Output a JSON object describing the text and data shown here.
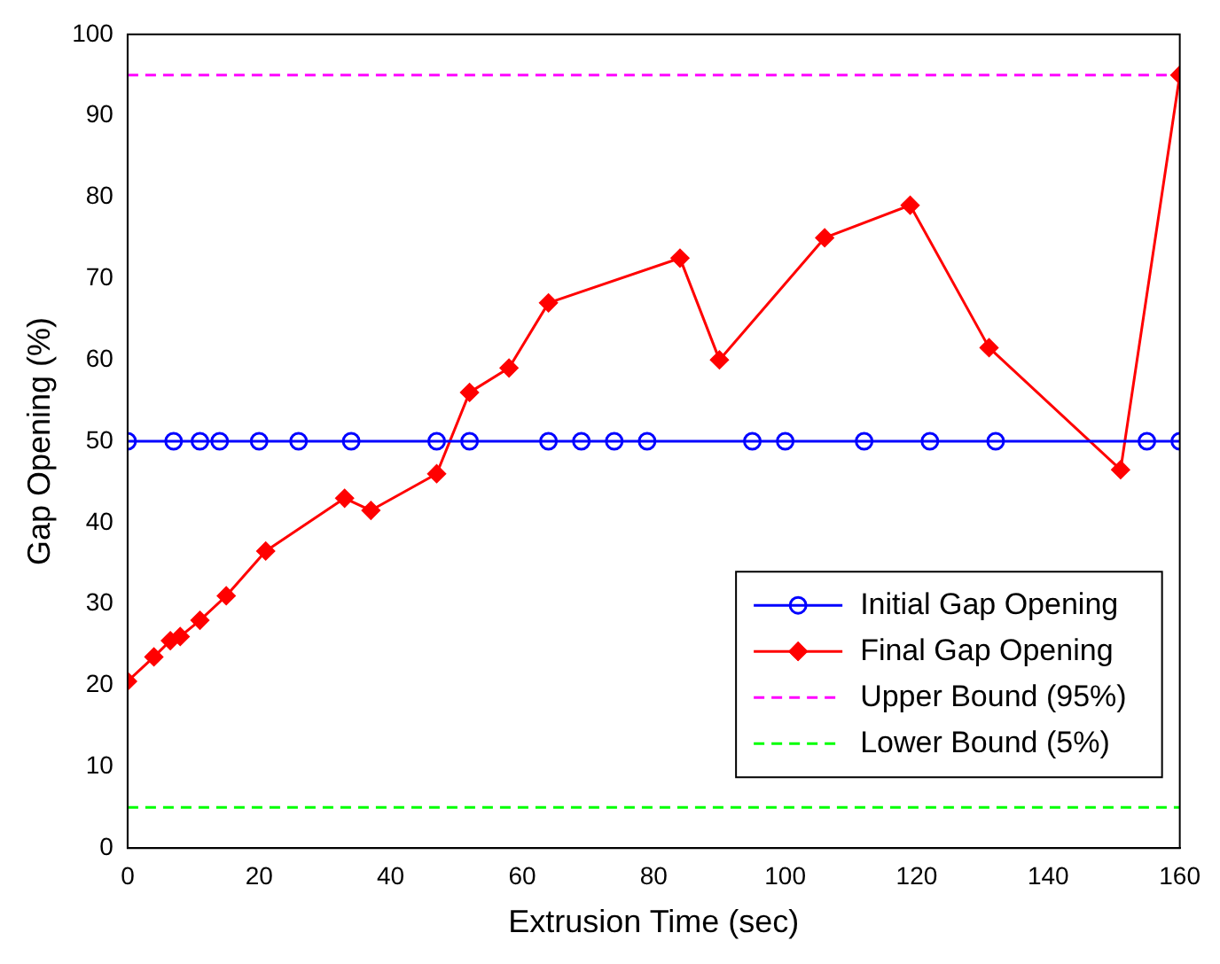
{
  "chart_data": {
    "type": "line",
    "xlabel": "Extrusion Time (sec)",
    "ylabel": "Gap Opening (%)",
    "xlim": [
      0,
      160
    ],
    "xticks": [
      0,
      20,
      40,
      60,
      80,
      100,
      120,
      140,
      160
    ],
    "ylim": [
      0,
      100
    ],
    "yticks": [
      0,
      10,
      20,
      30,
      40,
      50,
      60,
      70,
      80,
      90,
      100
    ],
    "grid": false,
    "legend": "bottom right",
    "line_style": "solid",
    "series": [
      {
        "name": "Initial Gap Opening",
        "color": "#0000ff",
        "marker": "circle",
        "x": [
          0,
          7,
          11,
          14,
          20,
          26,
          34,
          47,
          52,
          64,
          69,
          74,
          79,
          95,
          100,
          112,
          122,
          132,
          155,
          160
        ],
        "values": [
          50,
          50,
          50,
          50,
          50,
          50,
          50,
          50,
          50,
          50,
          50,
          50,
          50,
          50,
          50,
          50,
          50,
          50,
          50,
          50
        ]
      },
      {
        "name": "Final Gap Opening",
        "color": "#ff0000",
        "marker": "diamond",
        "x": [
          0,
          4,
          6.5,
          8,
          11,
          15,
          21,
          33,
          37,
          47,
          52,
          58,
          64,
          84,
          90,
          106,
          119,
          131,
          151,
          160
        ],
        "values": [
          20.5,
          23.5,
          25.5,
          26,
          28,
          31,
          36.5,
          43,
          41.5,
          46,
          56,
          59,
          67,
          72.5,
          60,
          75,
          79,
          61.5,
          46.5,
          95
        ]
      }
    ],
    "ref_lines": [
      {
        "axis": "y",
        "value": 95,
        "label": "Upper Bound (95%)",
        "color": "#ff00ff",
        "line_style": "dashed"
      },
      {
        "axis": "y",
        "value": 5,
        "label": "Lower Bound (5%)",
        "color": "#00ff00",
        "line_style": "dashed"
      }
    ]
  }
}
